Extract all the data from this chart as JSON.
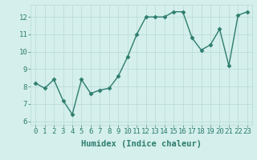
{
  "x": [
    0,
    1,
    2,
    3,
    4,
    5,
    6,
    7,
    8,
    9,
    10,
    11,
    12,
    13,
    14,
    15,
    16,
    17,
    18,
    19,
    20,
    21,
    22,
    23
  ],
  "y": [
    8.2,
    7.9,
    8.4,
    7.2,
    6.4,
    8.4,
    7.6,
    7.8,
    7.9,
    8.6,
    9.7,
    11.0,
    12.0,
    12.0,
    12.0,
    12.3,
    12.3,
    10.8,
    10.1,
    10.4,
    11.3,
    9.2,
    12.1,
    12.3
  ],
  "xlabel": "Humidex (Indice chaleur)",
  "xlim": [
    -0.5,
    23.5
  ],
  "ylim": [
    5.8,
    12.7
  ],
  "yticks": [
    6,
    7,
    8,
    9,
    10,
    11,
    12
  ],
  "xticks": [
    0,
    1,
    2,
    3,
    4,
    5,
    6,
    7,
    8,
    9,
    10,
    11,
    12,
    13,
    14,
    15,
    16,
    17,
    18,
    19,
    20,
    21,
    22,
    23
  ],
  "line_color": "#2e7d6e",
  "marker_color": "#2e7d6e",
  "bg_color": "#d4efec",
  "grid_color": "#b8dad6",
  "axis_label_color": "#2e7d6e",
  "tick_color": "#2e7d6e",
  "xlabel_fontsize": 7.5,
  "tick_fontsize": 6.5,
  "linewidth": 1.0,
  "markersize": 2.5
}
